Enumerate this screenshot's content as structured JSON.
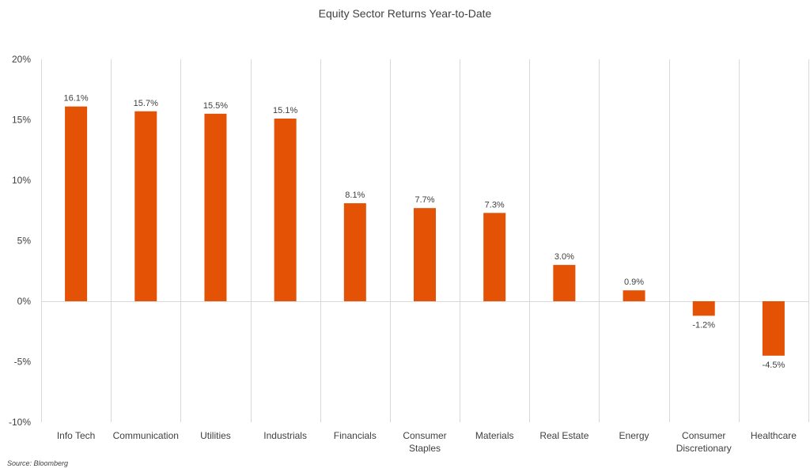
{
  "chart_data": {
    "type": "bar",
    "title": "Equity Sector Returns Year-to-Date",
    "categories": [
      "Info Tech",
      "Communication",
      "Utilities",
      "Industrials",
      "Financials",
      "Consumer Staples",
      "Materials",
      "Real Estate",
      "Energy",
      "Consumer Discretionary",
      "Healthcare"
    ],
    "category_lines": [
      [
        "Info Tech"
      ],
      [
        "Communication"
      ],
      [
        "Utilities"
      ],
      [
        "Industrials"
      ],
      [
        "Financials"
      ],
      [
        "Consumer",
        "Staples"
      ],
      [
        "Materials"
      ],
      [
        "Real Estate"
      ],
      [
        "Energy"
      ],
      [
        "Consumer",
        "Discretionary"
      ],
      [
        "Healthcare"
      ]
    ],
    "values": [
      16.1,
      15.7,
      15.5,
      15.1,
      8.1,
      7.7,
      7.3,
      3.0,
      0.9,
      -1.2,
      -4.5
    ],
    "data_labels": [
      "16.1%",
      "15.7%",
      "15.5%",
      "15.1%",
      "8.1%",
      "7.7%",
      "7.3%",
      "3.0%",
      "0.9%",
      "-1.2%",
      "-4.5%"
    ],
    "ylim": [
      -10,
      20
    ],
    "yticks": [
      20,
      15,
      10,
      5,
      0,
      -5,
      -10
    ],
    "ytick_labels": [
      "20%",
      "15%",
      "10%",
      "5%",
      "0%",
      "-5%",
      "-10%"
    ],
    "xlabel": "",
    "ylabel": "",
    "grid": "vertical separators between categories",
    "bar_color": "#E35205",
    "gridline_color": "#D9D9D9",
    "text_color": "#404040"
  },
  "source": "Source: Bloomberg"
}
